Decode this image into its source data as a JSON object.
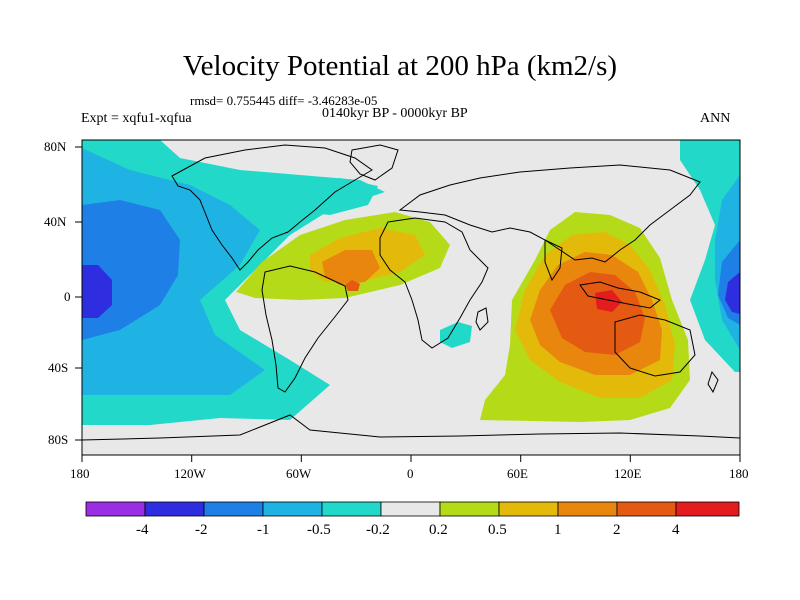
{
  "title": "Velocity Potential at 200 hPa (km2/s)",
  "stats": "rmsd= 0.755445 diff= -3.46283e-05",
  "left_label": "Expt = xqfu1-xqfua",
  "center_label": "0140kyr BP - 0000kyr BP",
  "right_label": "ANN",
  "x_ticks": [
    "180",
    "120W",
    "60W",
    "0",
    "60E",
    "120E",
    "180"
  ],
  "y_ticks": [
    "80N",
    "40N",
    "0",
    "40S",
    "80S"
  ],
  "colorbar_labels": [
    "-4",
    "-2",
    "-1",
    "-0.5",
    "-0.2",
    "0.2",
    "0.5",
    "1",
    "2",
    "4"
  ],
  "colorbar_colors": [
    "#9b2de5",
    "#2e2ee0",
    "#1e7fe6",
    "#1fb3e3",
    "#22d9c9",
    "#e8e8e8",
    "#b5db18",
    "#e3ba0a",
    "#e8860d",
    "#e55a12",
    "#e31d1d"
  ],
  "chart_data": {
    "type": "heatmap",
    "title": "Velocity Potential at 200 hPa (km2/s)",
    "xlabel": "",
    "ylabel": "",
    "xlim": [
      -180,
      180
    ],
    "ylim": [
      -90,
      90
    ],
    "levels": [
      -4,
      -2,
      -1,
      -0.5,
      -0.2,
      0.2,
      0.5,
      1,
      2,
      4
    ],
    "regions": [
      {
        "name": "central Pacific negative",
        "value_range": [
          -4,
          -2
        ],
        "center_lon": -175,
        "center_lat": 0
      },
      {
        "name": "western Pacific negative",
        "value_range": [
          -4,
          -2
        ],
        "center_lon": 178,
        "center_lat": 0
      },
      {
        "name": "Indo-Pacific positive maximum",
        "value_range": [
          2,
          4
        ],
        "center_lon": 100,
        "center_lat": -15
      },
      {
        "name": "Atlantic positive",
        "value_range": [
          0.5,
          1
        ],
        "center_lon": -30,
        "center_lat": 10
      }
    ]
  }
}
